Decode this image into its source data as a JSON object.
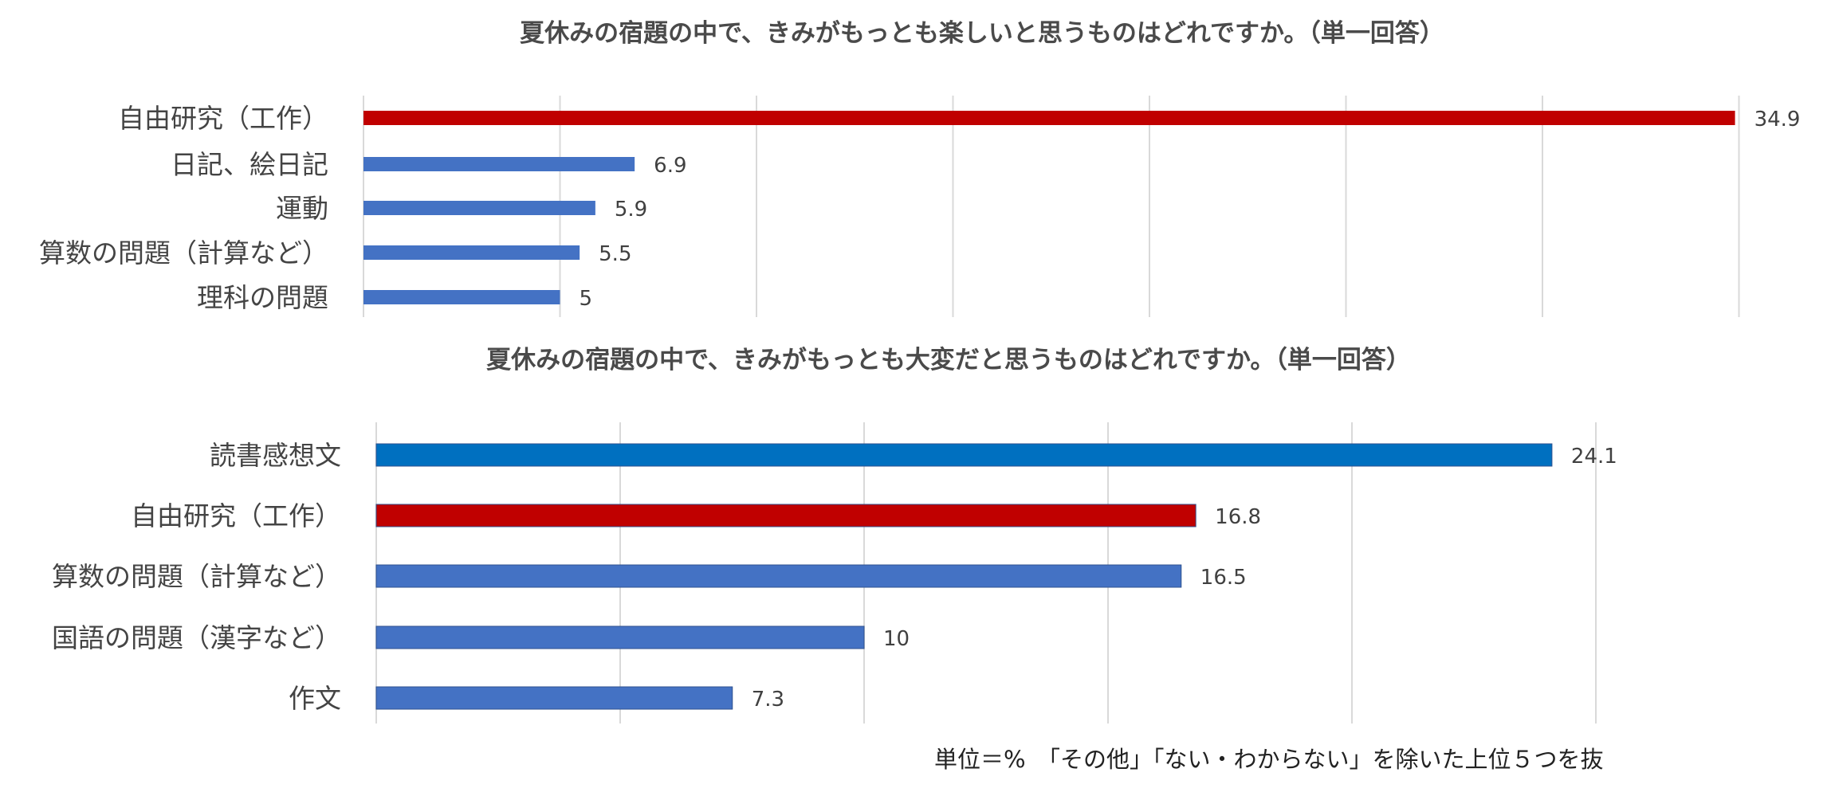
{
  "chart_data": [
    {
      "type": "bar",
      "orientation": "horizontal",
      "title": "夏休みの宿題の中で、きみがもっとも楽しいと思うものはどれですか。（単一回答）",
      "categories": [
        "自由研究（工作）",
        "日記、絵日記",
        "運動",
        "算数の問題（計算など）",
        "理科の問題"
      ],
      "values": [
        34.9,
        6.9,
        5.9,
        5.5,
        5
      ],
      "value_labels": [
        "34.9",
        "6.9",
        "5.9",
        "5.5",
        "5"
      ],
      "highlight_category": "自由研究（工作）",
      "xlim": [
        0,
        35
      ],
      "grid": true,
      "colors": {
        "default": "#4472c4",
        "highlight": "#c00000"
      }
    },
    {
      "type": "bar",
      "orientation": "horizontal",
      "title": "夏休みの宿題の中で、きみがもっとも大変だと思うものはどれですか。（単一回答）",
      "categories": [
        "読書感想文",
        "自由研究（工作）",
        "算数の問題（計算など）",
        "国語の問題（漢字など）",
        "作文"
      ],
      "values": [
        24.1,
        16.8,
        16.5,
        10,
        7.3
      ],
      "value_labels": [
        "24.1",
        "16.8",
        "16.5",
        "10",
        "7.3"
      ],
      "highlight_category": "自由研究（工作）",
      "xlim": [
        0,
        25
      ],
      "grid": true,
      "colors": {
        "default": "#4472c4",
        "top": "#0070c0",
        "highlight": "#c00000"
      }
    }
  ],
  "footer": {
    "note": "単位＝%　「その他」「ない・わからない」を除いた上位５つを抜"
  }
}
